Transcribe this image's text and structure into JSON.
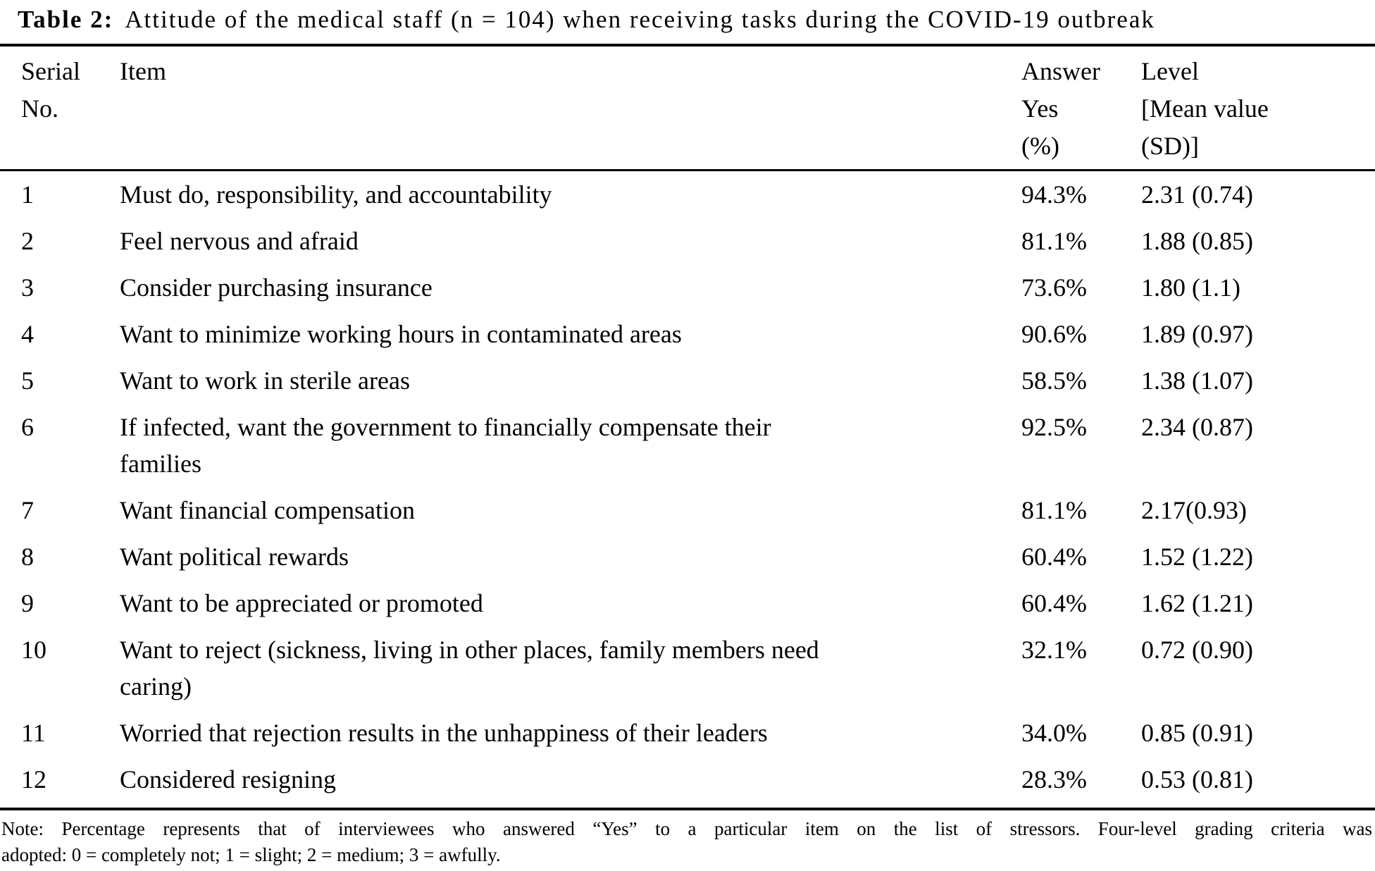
{
  "title": {
    "label": "Table 2:",
    "caption": "Attitude of the medical staff (n = 104) when receiving tasks during the COVID-19 outbreak"
  },
  "columns": [
    {
      "id": "serial",
      "label": "Serial\nNo."
    },
    {
      "id": "item",
      "label": "Item"
    },
    {
      "id": "answer_yes_pct",
      "label": "Answer\nYes\n(%)"
    },
    {
      "id": "level",
      "label": "Level\n[Mean value\n(SD)]"
    }
  ],
  "rows": [
    {
      "serial": "1",
      "item": "Must do, responsibility, and accountability",
      "answer_yes_pct": "94.3%",
      "level": "2.31 (0.74)"
    },
    {
      "serial": "2",
      "item": "Feel nervous and afraid",
      "answer_yes_pct": "81.1%",
      "level": "1.88 (0.85)"
    },
    {
      "serial": "3",
      "item": "Consider purchasing insurance",
      "answer_yes_pct": "73.6%",
      "level": "1.80 (1.1)"
    },
    {
      "serial": "4",
      "item": "Want to minimize working hours in contaminated areas",
      "answer_yes_pct": "90.6%",
      "level": "1.89 (0.97)"
    },
    {
      "serial": "5",
      "item": "Want to work in sterile areas",
      "answer_yes_pct": "58.5%",
      "level": "1.38 (1.07)"
    },
    {
      "serial": "6",
      "item": "If infected, want the government to financially compensate their\nfamilies",
      "answer_yes_pct": "92.5%",
      "level": "2.34 (0.87)"
    },
    {
      "serial": "7",
      "item": "Want financial compensation",
      "answer_yes_pct": "81.1%",
      "level": "2.17(0.93)"
    },
    {
      "serial": "8",
      "item": "Want political rewards",
      "answer_yes_pct": "60.4%",
      "level": "1.52 (1.22)"
    },
    {
      "serial": "9",
      "item": "Want to be appreciated or promoted",
      "answer_yes_pct": "60.4%",
      "level": "1.62 (1.21)"
    },
    {
      "serial": "10",
      "item": "Want to reject (sickness, living in other places, family members need\ncaring)",
      "answer_yes_pct": "32.1%",
      "level": "0.72 (0.90)"
    },
    {
      "serial": "11",
      "item": "Worried that rejection results in the unhappiness of their leaders",
      "answer_yes_pct": "34.0%",
      "level": "0.85 (0.91)"
    },
    {
      "serial": "12",
      "item": "Considered resigning",
      "answer_yes_pct": "28.3%",
      "level": "0.53 (0.81)"
    }
  ],
  "note": {
    "line1": "Note: Percentage represents that of interviewees who answered “Yes” to a particular item on the list of stressors. Four-level grading criteria was",
    "line2": "adopted: 0 = completely not; 1 = slight; 2 = medium; 3 = awfully."
  },
  "colors": {
    "text": "#000000",
    "background": "#ffffff",
    "rule": "#000000"
  }
}
